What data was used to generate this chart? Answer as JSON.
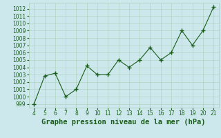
{
  "x": [
    4,
    5,
    6,
    7,
    8,
    9,
    10,
    11,
    12,
    13,
    14,
    15,
    16,
    17,
    18,
    19,
    20,
    21
  ],
  "y": [
    999,
    1002.8,
    1003.2,
    1000,
    1001,
    1004.2,
    1003,
    1003,
    1005,
    1004,
    1005,
    1006.7,
    1005,
    1006,
    1009,
    1007,
    1009,
    1012.2
  ],
  "line_color": "#1a5c1a",
  "marker_color": "#1a5c1a",
  "bg_color": "#cce8ec",
  "grid_color": "#aacfb8",
  "xlabel": "Graphe pression niveau de la mer (hPa)",
  "xlim": [
    3.5,
    21.5
  ],
  "ylim": [
    998.5,
    1012.8
  ],
  "yticks": [
    999,
    1000,
    1001,
    1002,
    1003,
    1004,
    1005,
    1006,
    1007,
    1008,
    1009,
    1010,
    1011,
    1012
  ],
  "xticks": [
    4,
    5,
    6,
    7,
    8,
    9,
    10,
    11,
    12,
    13,
    14,
    15,
    16,
    17,
    18,
    19,
    20,
    21
  ],
  "tick_fontsize": 5.5,
  "xlabel_fontsize": 7.5
}
